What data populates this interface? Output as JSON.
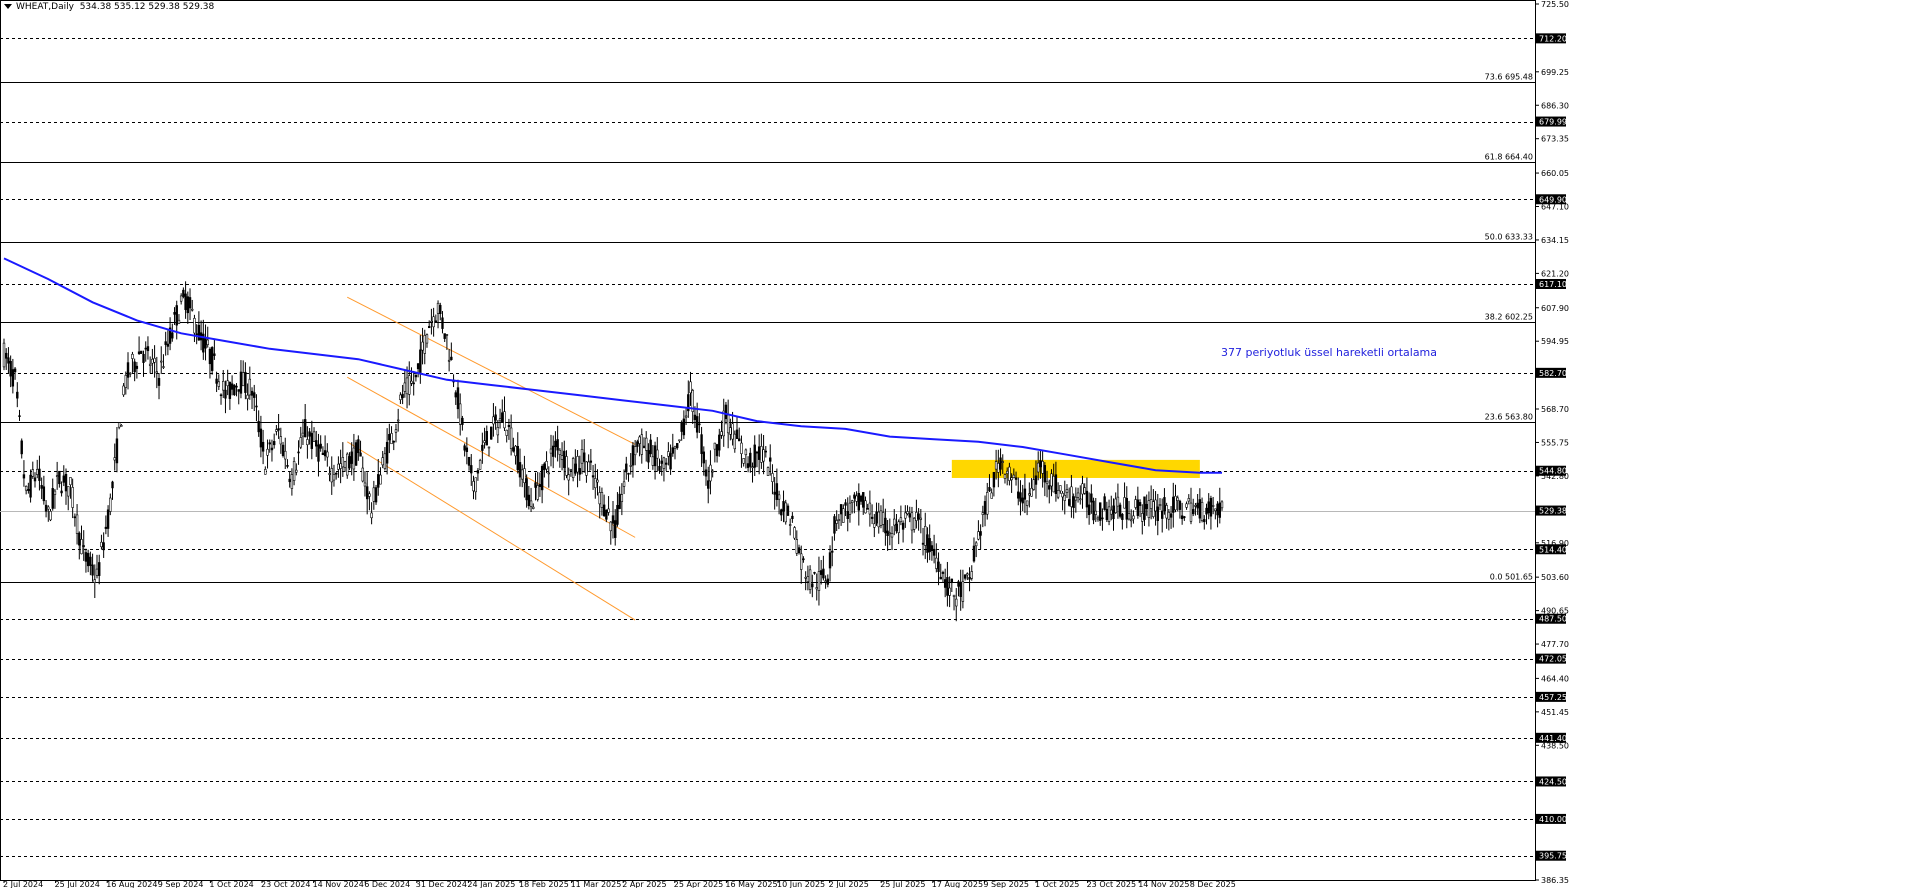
{
  "header": {
    "symbol": "WHEAT,Daily",
    "ohlc": "534.38 535.12 529.38 529.38"
  },
  "annotation": {
    "text": "377 periyotluk üssel hareketli ortalama"
  },
  "colors": {
    "background": "#ffffff",
    "candle": "#000000",
    "ema": "#1a1aff",
    "channel": "#ff9a2e",
    "zone": "#ffd700",
    "axis_box": "#000000"
  },
  "chart_data": {
    "type": "candlestick",
    "title": "WHEAT,Daily",
    "ylim": [
      386.35,
      725.5
    ],
    "y_ticks": [
      "725.50",
      "699.25",
      "686.30",
      "673.35",
      "660.05",
      "647.10",
      "634.15",
      "621.20",
      "607.90",
      "594.95",
      "568.70",
      "555.75",
      "542.80",
      "516.90",
      "503.60",
      "490.65",
      "477.70",
      "464.40",
      "451.45",
      "438.50",
      "386.35"
    ],
    "x_ticks": [
      "2 Jul 2024",
      "25 Jul 2024",
      "16 Aug 2024",
      "9 Sep 2024",
      "1 Oct 2024",
      "23 Oct 2024",
      "14 Nov 2024",
      "6 Dec 2024",
      "31 Dec 2024",
      "24 Jan 2025",
      "18 Feb 2025",
      "11 Mar 2025",
      "2 Apr 2025",
      "25 Apr 2025",
      "16 May 2025",
      "10 Jun 2025",
      "2 Jul 2025",
      "25 Jul 2025",
      "17 Aug 2025",
      "9 Sep 2025",
      "1 Oct 2025",
      "23 Oct 2025",
      "14 Nov 2025",
      "8 Dec 2025"
    ],
    "levels": [
      {
        "value": 712.2,
        "label": "712.20",
        "style": "dashed",
        "box": true
      },
      {
        "value": 679.99,
        "label": "679.99",
        "style": "dashed",
        "box": true
      },
      {
        "value": 649.9,
        "label": "649.90",
        "style": "dashed",
        "box": true
      },
      {
        "value": 617.1,
        "label": "617.10",
        "style": "dashed",
        "box": true
      },
      {
        "value": 582.7,
        "label": "582.70",
        "style": "dashed",
        "box": true
      },
      {
        "value": 544.8,
        "label": "544.80",
        "style": "dashed",
        "box": true
      },
      {
        "value": 529.38,
        "label": "529.38",
        "style": "current",
        "box": true
      },
      {
        "value": 514.4,
        "label": "514.40",
        "style": "dashed",
        "box": true
      },
      {
        "value": 487.5,
        "label": "487.50",
        "style": "dashed",
        "box": true
      },
      {
        "value": 472.05,
        "label": "472.05",
        "style": "dashed",
        "box": true
      },
      {
        "value": 457.25,
        "label": "457.25",
        "style": "dashed",
        "box": true
      },
      {
        "value": 441.4,
        "label": "441.40",
        "style": "dashed",
        "box": true
      },
      {
        "value": 424.5,
        "label": "424.50",
        "style": "dashed",
        "box": true
      },
      {
        "value": 410.0,
        "label": "410.00",
        "style": "dashed",
        "box": true
      },
      {
        "value": 395.75,
        "label": "395.75",
        "style": "dashed",
        "box": true
      }
    ],
    "fibonacci": [
      {
        "level": "73.6",
        "value": 695.48,
        "label": "73.6 695.48"
      },
      {
        "level": "61.8",
        "value": 664.4,
        "label": "61.8 664.40"
      },
      {
        "level": "50.0",
        "value": 633.33,
        "label": "50.0 633.33"
      },
      {
        "level": "38.2",
        "value": 602.25,
        "label": "38.2 602.25"
      },
      {
        "level": "23.6",
        "value": 563.8,
        "label": "23.6 563.80"
      },
      {
        "level": "0.0",
        "value": 501.65,
        "label": "0.0 501.65"
      }
    ],
    "ema_377": [
      [
        0,
        627
      ],
      [
        20,
        619
      ],
      [
        40,
        610
      ],
      [
        60,
        603
      ],
      [
        80,
        598
      ],
      [
        100,
        595
      ],
      [
        120,
        592
      ],
      [
        140,
        590
      ],
      [
        160,
        588
      ],
      [
        180,
        584
      ],
      [
        200,
        580
      ],
      [
        220,
        578
      ],
      [
        240,
        576
      ],
      [
        260,
        574
      ],
      [
        280,
        572
      ],
      [
        300,
        570
      ],
      [
        320,
        568
      ],
      [
        340,
        564
      ],
      [
        360,
        562
      ],
      [
        380,
        561
      ],
      [
        400,
        558
      ],
      [
        420,
        557
      ],
      [
        440,
        556
      ],
      [
        460,
        554
      ],
      [
        480,
        551
      ],
      [
        500,
        548
      ],
      [
        520,
        545
      ],
      [
        540,
        544
      ],
      [
        550,
        544
      ]
    ],
    "channel": {
      "color": "#ff9a2e",
      "lines": [
        [
          [
            155,
            612
          ],
          [
            285,
            555
          ]
        ],
        [
          [
            155,
            581
          ],
          [
            285,
            519
          ]
        ],
        [
          [
            155,
            556
          ],
          [
            285,
            487
          ]
        ]
      ]
    },
    "zone": {
      "x0": 428,
      "x1": 540,
      "y_high": 549,
      "y_low": 542
    },
    "price_points": [
      [
        0,
        590
      ],
      [
        5,
        580
      ],
      [
        10,
        535
      ],
      [
        15,
        545
      ],
      [
        20,
        527
      ],
      [
        25,
        542
      ],
      [
        30,
        538
      ],
      [
        36,
        512
      ],
      [
        42,
        503
      ],
      [
        48,
        532
      ],
      [
        55,
        580
      ],
      [
        62,
        592
      ],
      [
        70,
        582
      ],
      [
        78,
        605
      ],
      [
        82,
        612
      ],
      [
        88,
        598
      ],
      [
        94,
        588
      ],
      [
        100,
        574
      ],
      [
        106,
        580
      ],
      [
        112,
        576
      ],
      [
        118,
        548
      ],
      [
        124,
        560
      ],
      [
        130,
        542
      ],
      [
        136,
        560
      ],
      [
        142,
        553
      ],
      [
        148,
        545
      ],
      [
        154,
        547
      ],
      [
        160,
        552
      ],
      [
        166,
        530
      ],
      [
        172,
        550
      ],
      [
        176,
        560
      ],
      [
        180,
        574
      ],
      [
        186,
        580
      ],
      [
        192,
        602
      ],
      [
        196,
        608
      ],
      [
        200,
        596
      ],
      [
        204,
        578
      ],
      [
        208,
        555
      ],
      [
        212,
        538
      ],
      [
        216,
        552
      ],
      [
        220,
        560
      ],
      [
        226,
        566
      ],
      [
        232,
        550
      ],
      [
        238,
        532
      ],
      [
        244,
        544
      ],
      [
        250,
        556
      ],
      [
        256,
        544
      ],
      [
        262,
        550
      ],
      [
        268,
        538
      ],
      [
        272,
        530
      ],
      [
        276,
        522
      ],
      [
        280,
        540
      ],
      [
        286,
        556
      ],
      [
        292,
        552
      ],
      [
        298,
        545
      ],
      [
        304,
        552
      ],
      [
        310,
        575
      ],
      [
        314,
        560
      ],
      [
        318,
        540
      ],
      [
        322,
        555
      ],
      [
        326,
        566
      ],
      [
        330,
        558
      ],
      [
        336,
        548
      ],
      [
        342,
        552
      ],
      [
        346,
        545
      ],
      [
        350,
        534
      ],
      [
        356,
        525
      ],
      [
        360,
        510
      ],
      [
        364,
        503
      ],
      [
        368,
        502
      ],
      [
        372,
        505
      ],
      [
        376,
        528
      ],
      [
        382,
        530
      ],
      [
        388,
        532
      ],
      [
        394,
        526
      ],
      [
        400,
        522
      ],
      [
        406,
        524
      ],
      [
        412,
        526
      ],
      [
        418,
        515
      ],
      [
        422,
        510
      ],
      [
        426,
        500
      ],
      [
        430,
        496
      ],
      [
        436,
        502
      ],
      [
        440,
        520
      ],
      [
        444,
        532
      ],
      [
        450,
        550
      ],
      [
        456,
        540
      ],
      [
        462,
        532
      ],
      [
        468,
        547
      ],
      [
        474,
        540
      ],
      [
        480,
        534
      ],
      [
        486,
        536
      ],
      [
        492,
        530
      ]
    ]
  }
}
